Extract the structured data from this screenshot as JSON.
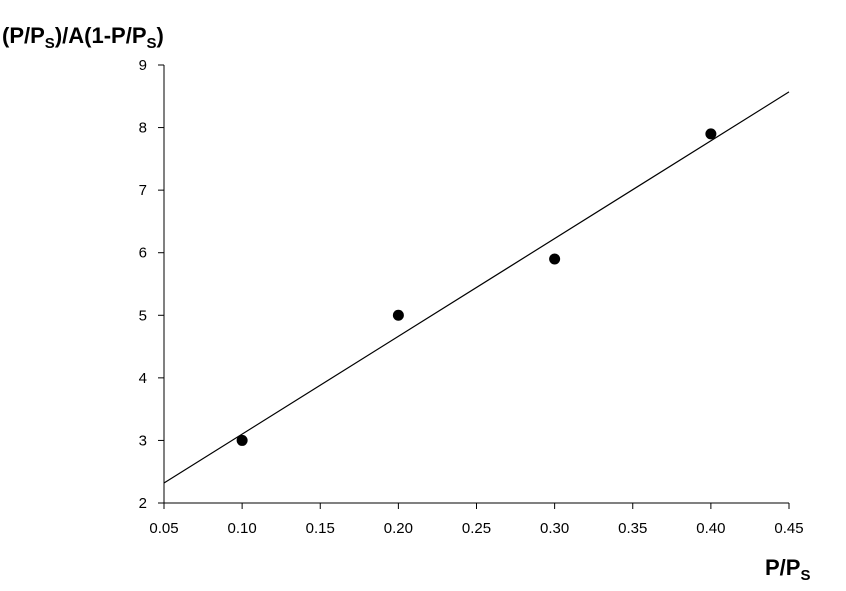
{
  "chart_data": {
    "type": "scatter",
    "title": "",
    "ylabel": {
      "parts": [
        {
          "text": "(P/P",
          "sub": false
        },
        {
          "text": "S",
          "sub": true
        },
        {
          "text": ")/A(1-P/P",
          "sub": false
        },
        {
          "text": "S",
          "sub": true
        },
        {
          "text": ")",
          "sub": false
        }
      ]
    },
    "xlabel": {
      "parts": [
        {
          "text": "P/P",
          "sub": false
        },
        {
          "text": "S",
          "sub": true
        }
      ]
    },
    "xlim": [
      0.05,
      0.45
    ],
    "ylim": [
      2,
      9
    ],
    "xticks": [
      "0.05",
      "0.10",
      "0.15",
      "0.20",
      "0.25",
      "0.30",
      "0.35",
      "0.40",
      "0.45"
    ],
    "yticks": [
      "2",
      "3",
      "4",
      "5",
      "6",
      "7",
      "8",
      "9"
    ],
    "grid": false,
    "series": [
      {
        "points": [
          {
            "x": 0.1,
            "y": 3.0
          },
          {
            "x": 0.2,
            "y": 5.0
          },
          {
            "x": 0.3,
            "y": 5.9
          },
          {
            "x": 0.4,
            "y": 7.9
          }
        ],
        "marker_color": "#000000"
      }
    ],
    "fit_line": {
      "x": [
        0.05,
        0.45
      ],
      "y": [
        2.32,
        8.57
      ],
      "color": "#000000"
    }
  }
}
